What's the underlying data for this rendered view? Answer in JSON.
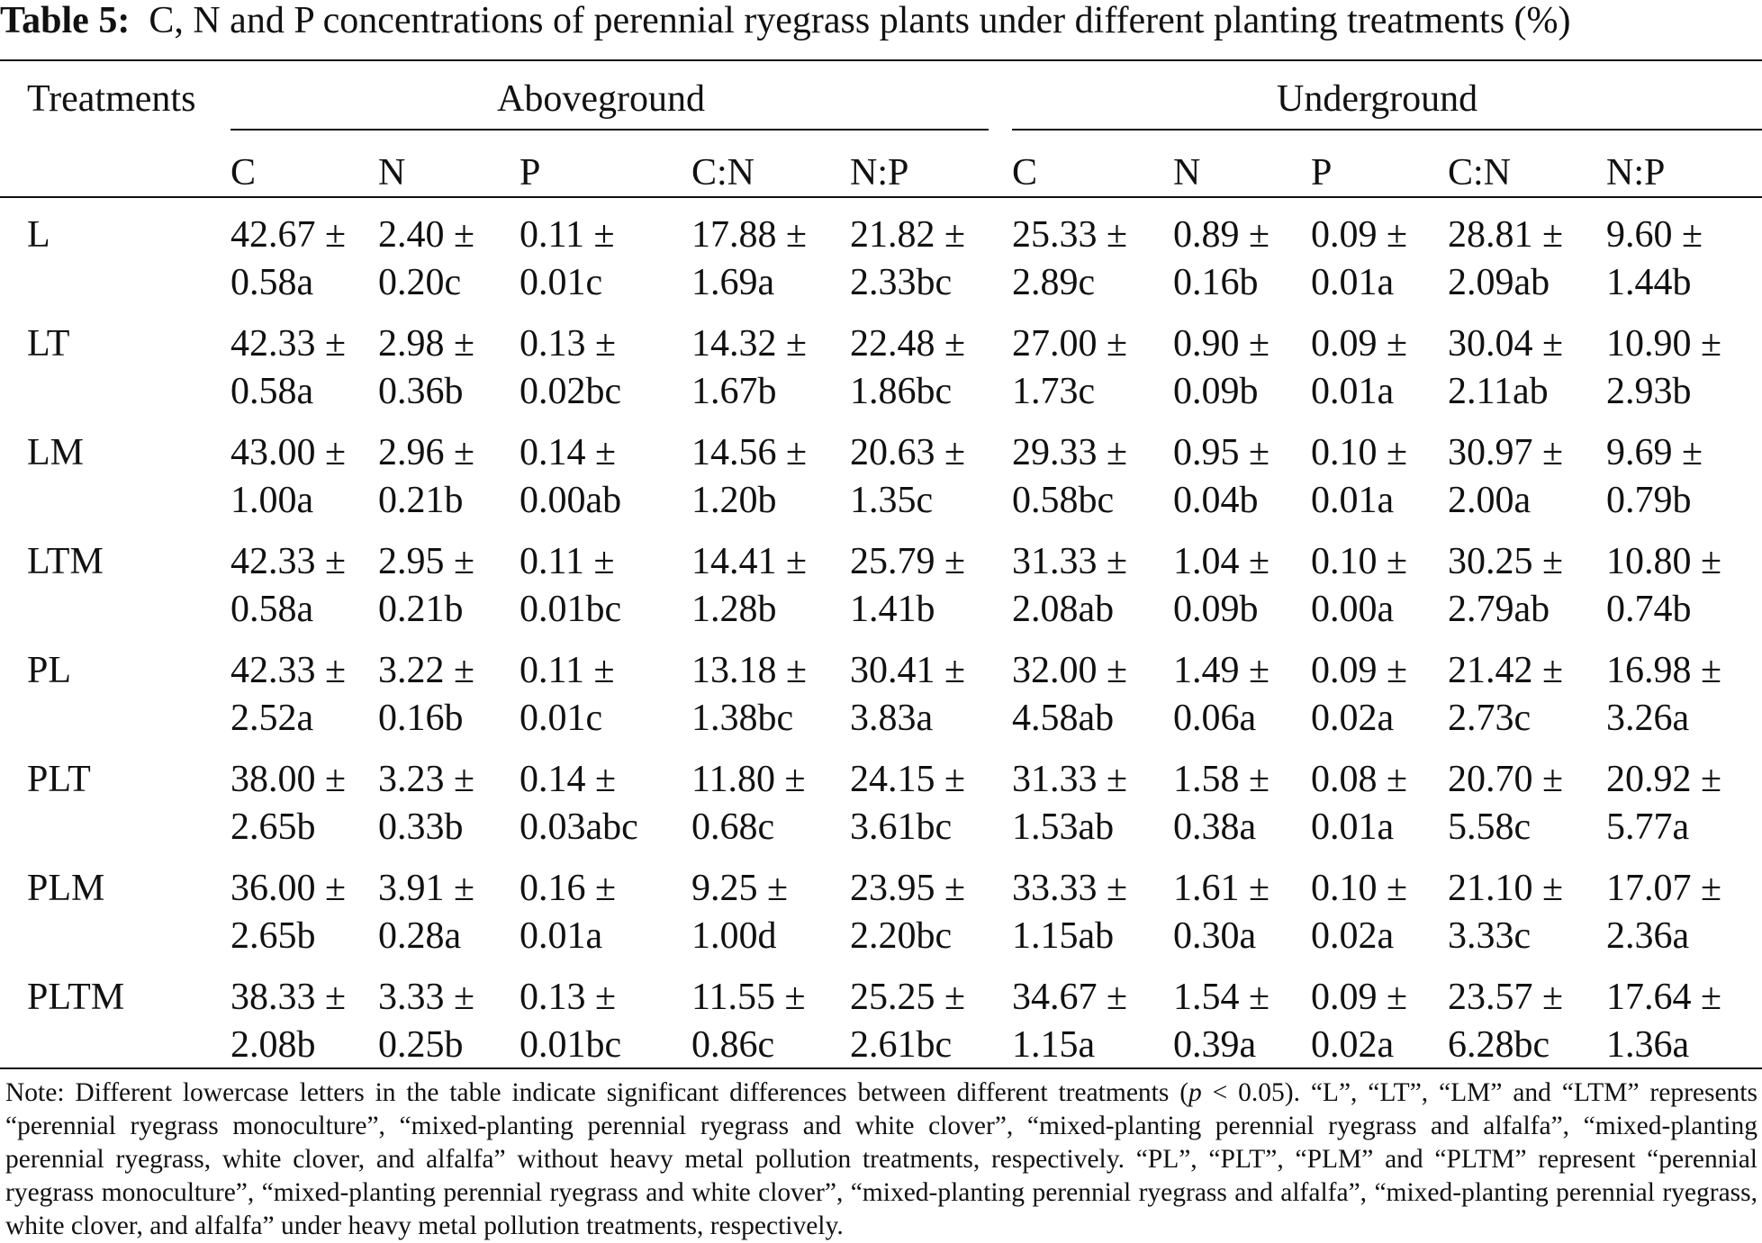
{
  "caption": {
    "label": "Table 5:",
    "text": "C, N and P concentrations of perennial ryegrass plants under different planting treatments (%)"
  },
  "header": {
    "treatments": "Treatments",
    "group_above": "Aboveground",
    "group_under": "Underground",
    "columns": [
      "C",
      "N",
      "P",
      "C:N",
      "N:P",
      "C",
      "N",
      "P",
      "C:N",
      "N:P"
    ]
  },
  "rows": [
    {
      "treatment": "L",
      "top": [
        "42.67 ±",
        "2.40 ±",
        "0.11 ±",
        "17.88 ±",
        "21.82 ±",
        "25.33 ±",
        "0.89 ±",
        "0.09 ±",
        "28.81 ±",
        "9.60 ±"
      ],
      "bottom": [
        "0.58a",
        "0.20c",
        "0.01c",
        "1.69a",
        "2.33bc",
        "2.89c",
        "0.16b",
        "0.01a",
        "2.09ab",
        "1.44b"
      ]
    },
    {
      "treatment": "LT",
      "top": [
        "42.33 ±",
        "2.98 ±",
        "0.13 ±",
        "14.32 ±",
        "22.48 ±",
        "27.00 ±",
        "0.90 ±",
        "0.09 ±",
        "30.04 ±",
        "10.90 ±"
      ],
      "bottom": [
        "0.58a",
        "0.36b",
        "0.02bc",
        "1.67b",
        "1.86bc",
        "1.73c",
        "0.09b",
        "0.01a",
        "2.11ab",
        "2.93b"
      ]
    },
    {
      "treatment": "LM",
      "top": [
        "43.00 ±",
        "2.96 ±",
        "0.14 ±",
        "14.56 ±",
        "20.63 ±",
        "29.33 ±",
        "0.95 ±",
        "0.10 ±",
        "30.97 ±",
        "9.69 ±"
      ],
      "bottom": [
        "1.00a",
        "0.21b",
        "0.00ab",
        "1.20b",
        "1.35c",
        "0.58bc",
        "0.04b",
        "0.01a",
        "2.00a",
        "0.79b"
      ]
    },
    {
      "treatment": "LTM",
      "top": [
        "42.33 ±",
        "2.95 ±",
        "0.11 ±",
        "14.41 ±",
        "25.79 ±",
        "31.33 ±",
        "1.04 ±",
        "0.10 ±",
        "30.25 ±",
        "10.80 ±"
      ],
      "bottom": [
        "0.58a",
        "0.21b",
        "0.01bc",
        "1.28b",
        "1.41b",
        "2.08ab",
        "0.09b",
        "0.00a",
        "2.79ab",
        "0.74b"
      ]
    },
    {
      "treatment": "PL",
      "top": [
        "42.33 ±",
        "3.22 ±",
        "0.11 ±",
        "13.18 ±",
        "30.41 ±",
        "32.00 ±",
        "1.49 ±",
        "0.09 ±",
        "21.42 ±",
        "16.98 ±"
      ],
      "bottom": [
        "2.52a",
        "0.16b",
        "0.01c",
        "1.38bc",
        "3.83a",
        "4.58ab",
        "0.06a",
        "0.02a",
        "2.73c",
        "3.26a"
      ]
    },
    {
      "treatment": "PLT",
      "top": [
        "38.00 ±",
        "3.23 ±",
        "0.14 ±",
        "11.80 ±",
        "24.15 ±",
        "31.33 ±",
        "1.58 ±",
        "0.08 ±",
        "20.70 ±",
        "20.92 ±"
      ],
      "bottom": [
        "2.65b",
        "0.33b",
        "0.03abc",
        "0.68c",
        "3.61bc",
        "1.53ab",
        "0.38a",
        "0.01a",
        "5.58c",
        "5.77a"
      ]
    },
    {
      "treatment": "PLM",
      "top": [
        "36.00 ±",
        "3.91 ±",
        "0.16 ±",
        "9.25 ±",
        "23.95 ±",
        "33.33 ±",
        "1.61 ±",
        "0.10 ±",
        "21.10 ±",
        "17.07 ±"
      ],
      "bottom": [
        "2.65b",
        "0.28a",
        "0.01a",
        "1.00d",
        "2.20bc",
        "1.15ab",
        "0.30a",
        "0.02a",
        "3.33c",
        "2.36a"
      ]
    },
    {
      "treatment": "PLTM",
      "top": [
        "38.33 ±",
        "3.33 ±",
        "0.13 ±",
        "11.55 ±",
        "25.25 ±",
        "34.67 ±",
        "1.54 ±",
        "0.09 ±",
        "23.57 ±",
        "17.64 ±"
      ],
      "bottom": [
        "2.08b",
        "0.25b",
        "0.01bc",
        "0.86c",
        "2.61bc",
        "1.15a",
        "0.39a",
        "0.02a",
        "6.28bc",
        "1.36a"
      ]
    }
  ],
  "note": {
    "before_p": "Note: Different lowercase letters in the table indicate significant differences between different treatments (",
    "p": "p",
    "after_p": " < 0.05). “L”, “LT”, “LM” and “LTM” represents “perennial ryegrass monoculture”, “mixed-planting perennial ryegrass and white clover”, “mixed-planting perennial ryegrass and alfalfa”, “mixed-planting perennial ryegrass, white clover, and alfalfa” without heavy metal pollution treatments, respectively. “PL”, “PLT”, “PLM” and “PLTM” represent “perennial ryegrass monoculture”, “mixed-planting perennial ryegrass and white clover”, “mixed-planting perennial ryegrass and alfalfa”, “mixed-planting perennial ryegrass, white clover, and alfalfa” under heavy metal pollution treatments, respectively."
  }
}
